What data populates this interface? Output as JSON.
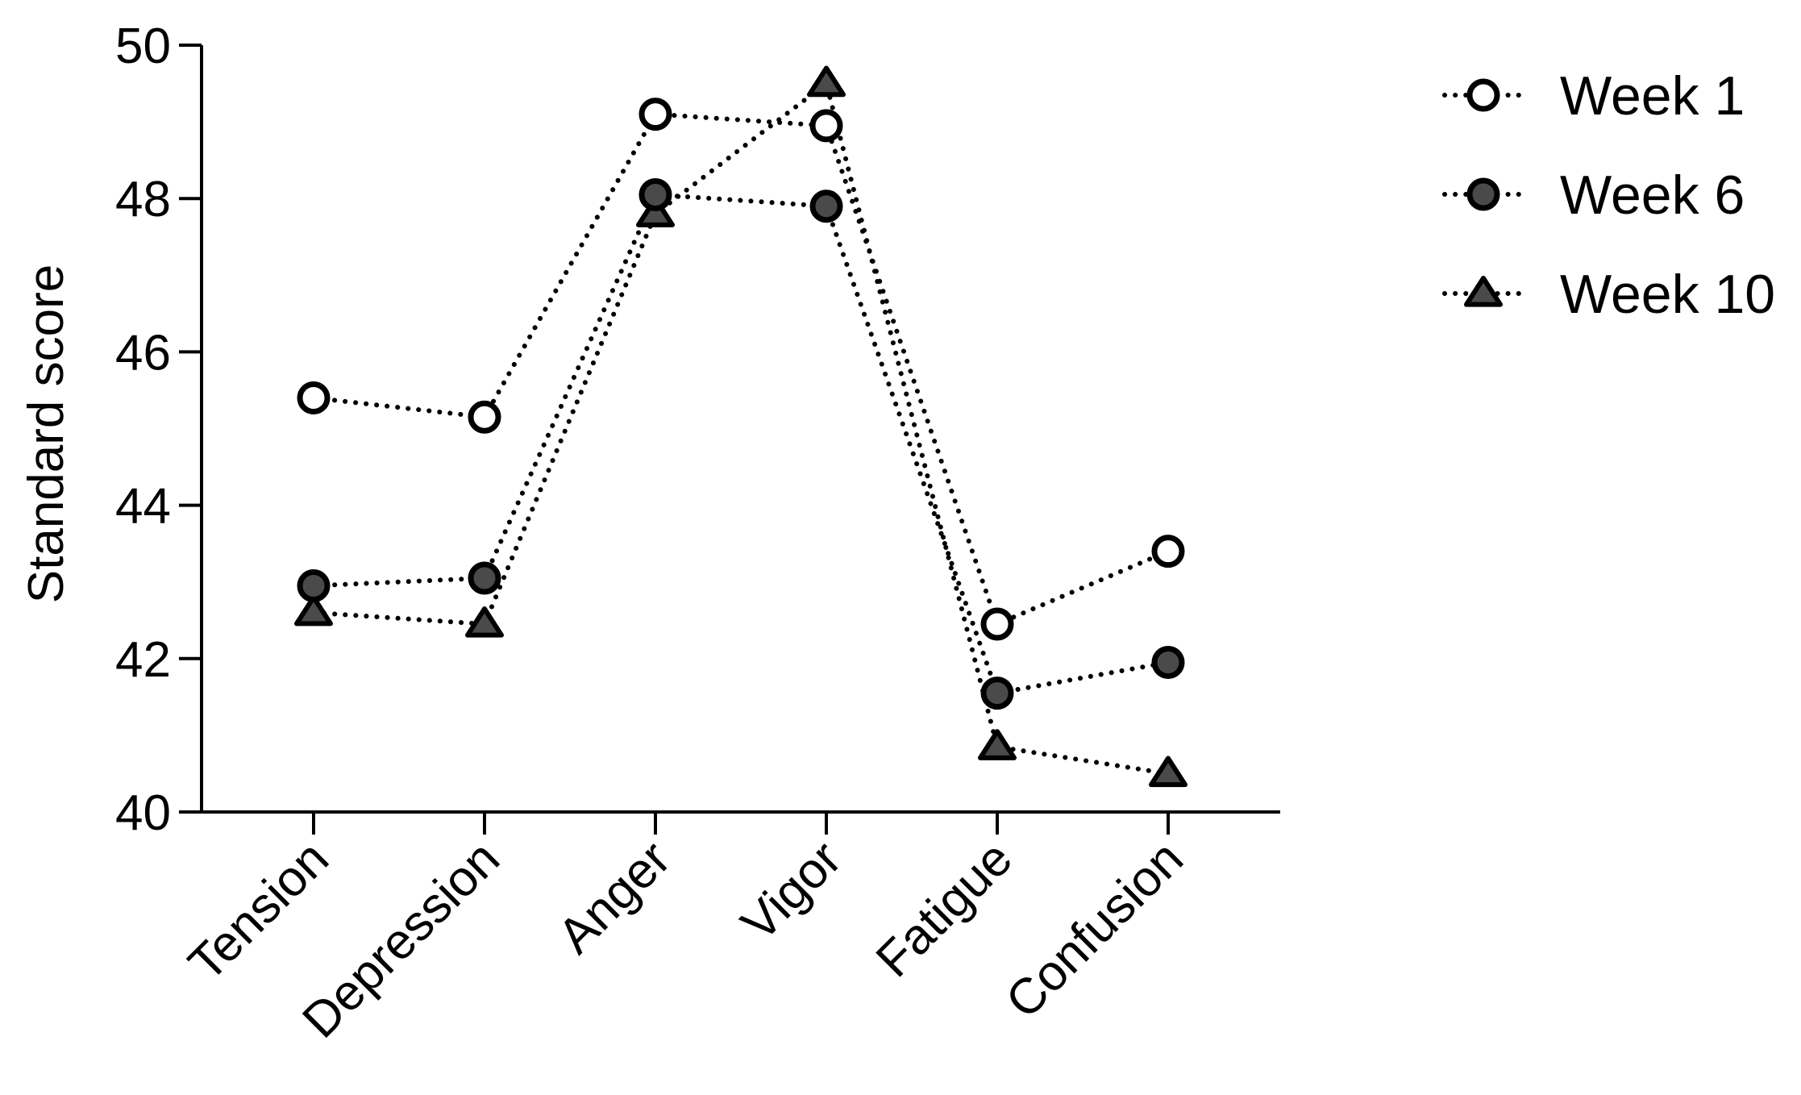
{
  "chart_data": {
    "type": "line",
    "categories": [
      "Tension",
      "Depression",
      "Anger",
      "Vigor",
      "Fatigue",
      "Confusion"
    ],
    "ylabel": "Standard score",
    "xlabel": "",
    "ylim": [
      40,
      50
    ],
    "yticks": [
      40,
      42,
      44,
      46,
      48,
      50
    ],
    "grid": false,
    "legend_position": "top-right",
    "line_style": "dotted",
    "series": [
      {
        "name": "Week 1",
        "marker": "circle-open",
        "color": "#000000",
        "fill": "#ffffff",
        "values": [
          45.4,
          45.15,
          49.1,
          48.95,
          42.45,
          43.4
        ]
      },
      {
        "name": "Week 6",
        "marker": "circle-filled",
        "color": "#000000",
        "fill": "#4a4a4a",
        "values": [
          42.95,
          43.05,
          48.05,
          47.9,
          41.55,
          41.95
        ]
      },
      {
        "name": "Week 10",
        "marker": "triangle-filled",
        "color": "#000000",
        "fill": "#4a4a4a",
        "values": [
          42.6,
          42.45,
          47.8,
          49.5,
          40.85,
          40.5
        ]
      }
    ]
  }
}
